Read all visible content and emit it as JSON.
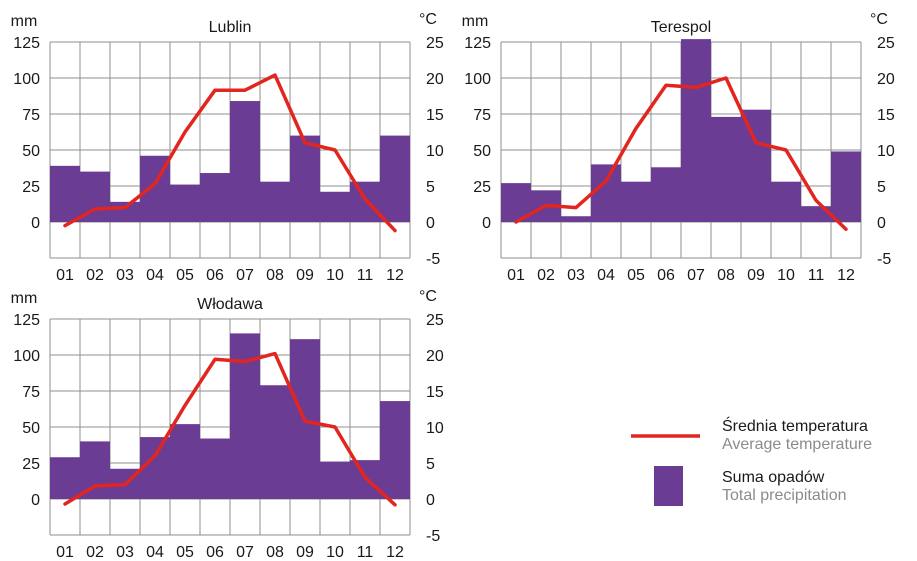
{
  "colors": {
    "bar": "#6b3c93",
    "line": "#e2251f",
    "grid": "#8f8f8f",
    "legend_sub_text": "#8c8c8c"
  },
  "chart_data": [
    {
      "type": "bar+line",
      "title": "Lublin",
      "left_unit": "mm",
      "right_unit": "°C",
      "categories": [
        "01",
        "02",
        "03",
        "04",
        "05",
        "06",
        "07",
        "08",
        "09",
        "10",
        "11",
        "12"
      ],
      "left_ticks": [
        "125",
        "100",
        "75",
        "50",
        "25",
        "0"
      ],
      "right_ticks": [
        "25",
        "20",
        "15",
        "10",
        "5",
        "0",
        "-5"
      ],
      "ylim_precip": [
        -25,
        125
      ],
      "ylim_temp": [
        -5,
        25
      ],
      "grid": true,
      "series": [
        {
          "name": "Suma opadów",
          "kind": "bar",
          "axis": "left",
          "values": [
            39,
            35,
            14,
            46,
            26,
            34,
            84,
            28,
            60,
            21,
            28,
            60
          ]
        },
        {
          "name": "Średnia temperatura",
          "kind": "line",
          "axis": "right",
          "values": [
            -0.5,
            1.8,
            2,
            5.3,
            12.5,
            18.3,
            18.3,
            20.4,
            11,
            10,
            3.2,
            -1.2
          ]
        }
      ]
    },
    {
      "type": "bar+line",
      "title": "Terespol",
      "left_unit": "mm",
      "right_unit": "°C",
      "categories": [
        "01",
        "02",
        "03",
        "04",
        "05",
        "06",
        "07",
        "08",
        "09",
        "10",
        "11",
        "12"
      ],
      "left_ticks": [
        "125",
        "100",
        "75",
        "50",
        "25",
        "0"
      ],
      "right_ticks": [
        "25",
        "20",
        "15",
        "10",
        "5",
        "0",
        "-5"
      ],
      "ylim_precip": [
        -25,
        125
      ],
      "ylim_temp": [
        -5,
        25
      ],
      "grid": true,
      "series": [
        {
          "name": "Suma opadów",
          "kind": "bar",
          "axis": "left",
          "values": [
            27,
            22,
            4,
            40,
            28,
            38,
            127,
            73,
            78,
            28,
            11,
            49
          ]
        },
        {
          "name": "Średnia temperatura",
          "kind": "line",
          "axis": "right",
          "values": [
            0,
            2.3,
            2,
            5.7,
            13,
            19,
            18.7,
            20,
            11,
            10,
            3,
            -1
          ]
        }
      ]
    },
    {
      "type": "bar+line",
      "title": "Włodawa",
      "left_unit": "mm",
      "right_unit": "°C",
      "categories": [
        "01",
        "02",
        "03",
        "04",
        "05",
        "06",
        "07",
        "08",
        "09",
        "10",
        "11",
        "12"
      ],
      "left_ticks": [
        "125",
        "100",
        "75",
        "50",
        "25",
        "0"
      ],
      "right_ticks": [
        "25",
        "20",
        "15",
        "10",
        "5",
        "0",
        "-5"
      ],
      "ylim_precip": [
        -25,
        125
      ],
      "ylim_temp": [
        -5,
        25
      ],
      "grid": true,
      "series": [
        {
          "name": "Suma opadów",
          "kind": "bar",
          "axis": "left",
          "values": [
            29,
            40,
            21,
            43,
            52,
            42,
            115,
            79,
            111,
            26,
            27,
            68
          ]
        },
        {
          "name": "Średnia temperatura",
          "kind": "line",
          "axis": "right",
          "values": [
            -0.7,
            1.8,
            2,
            6,
            13,
            19.4,
            19.1,
            20.2,
            10.8,
            10,
            3,
            -0.8
          ]
        }
      ]
    }
  ],
  "legend": {
    "temperature": {
      "main": "Średnia temperatura",
      "sub": "Average temperature"
    },
    "precipitation": {
      "main": "Suma opadów",
      "sub": "Total precipitation"
    }
  }
}
